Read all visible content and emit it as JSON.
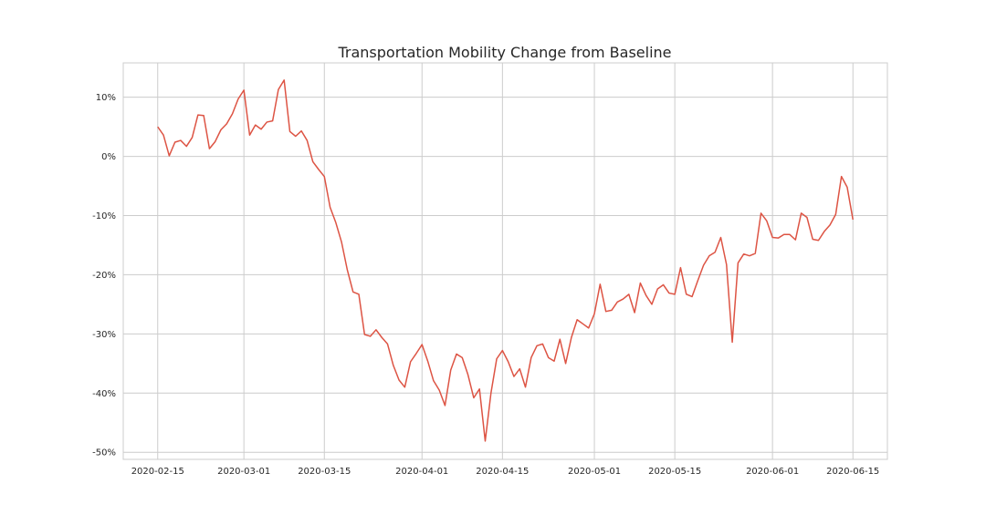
{
  "chart_data": {
    "type": "line",
    "title": "Transportation Mobility Change from Baseline",
    "xlabel": "",
    "ylabel": "",
    "x_start": "2020-02-15",
    "x_end": "2020-06-15",
    "xlim": [
      "2020-02-09",
      "2020-06-21"
    ],
    "ylim": [
      -51.2,
      15.8
    ],
    "x_ticks": [
      "2020-02-15",
      "2020-03-01",
      "2020-03-15",
      "2020-04-01",
      "2020-04-15",
      "2020-05-01",
      "2020-05-15",
      "2020-06-01",
      "2020-06-15"
    ],
    "y_ticks": [
      10,
      0,
      -10,
      -20,
      -30,
      -40,
      -50
    ],
    "y_tick_labels": [
      "10%",
      "0%",
      "-10%",
      "-20%",
      "-30%",
      "-40%",
      "-50%"
    ],
    "grid": true,
    "line_color": "#dd5444",
    "series": [
      {
        "name": "",
        "values": [
          5.0,
          3.6,
          0.1,
          2.4,
          2.7,
          1.7,
          3.2,
          7.0,
          6.9,
          1.3,
          2.5,
          4.5,
          5.5,
          7.2,
          9.7,
          11.2,
          3.6,
          5.3,
          4.6,
          5.8,
          6.0,
          11.3,
          12.9,
          4.2,
          3.4,
          4.3,
          2.7,
          -0.9,
          -2.2,
          -3.4,
          -8.6,
          -11.2,
          -14.5,
          -19.2,
          -22.9,
          -23.3,
          -30.1,
          -30.4,
          -29.3,
          -30.6,
          -31.7,
          -35.3,
          -37.8,
          -39.0,
          -34.7,
          -33.3,
          -31.8,
          -34.6,
          -37.9,
          -39.5,
          -42.1,
          -36.1,
          -33.4,
          -34.0,
          -36.9,
          -40.8,
          -39.3,
          -48.1,
          -40.0,
          -34.2,
          -32.8,
          -34.7,
          -37.2,
          -35.9,
          -39.0,
          -34.0,
          -32.0,
          -31.7,
          -34.0,
          -34.6,
          -30.9,
          -35.0,
          -30.6,
          -27.6,
          -28.3,
          -29.0,
          -26.6,
          -21.6,
          -26.2,
          -26.0,
          -24.6,
          -24.1,
          -23.3,
          -26.4,
          -21.4,
          -23.5,
          -25.0,
          -22.4,
          -21.7,
          -23.1,
          -23.3,
          -18.8,
          -23.3,
          -23.7,
          -21.0,
          -18.4,
          -16.8,
          -16.2,
          -13.7,
          -18.3,
          -31.4,
          -18.0,
          -16.5,
          -16.8,
          -16.4,
          -9.6,
          -10.9,
          -13.7,
          -13.8,
          -13.2,
          -13.2,
          -14.1,
          -9.6,
          -10.3,
          -14.0,
          -14.2,
          -12.7,
          -11.6,
          -9.8,
          -3.4,
          -5.2,
          -10.7
        ]
      }
    ]
  }
}
